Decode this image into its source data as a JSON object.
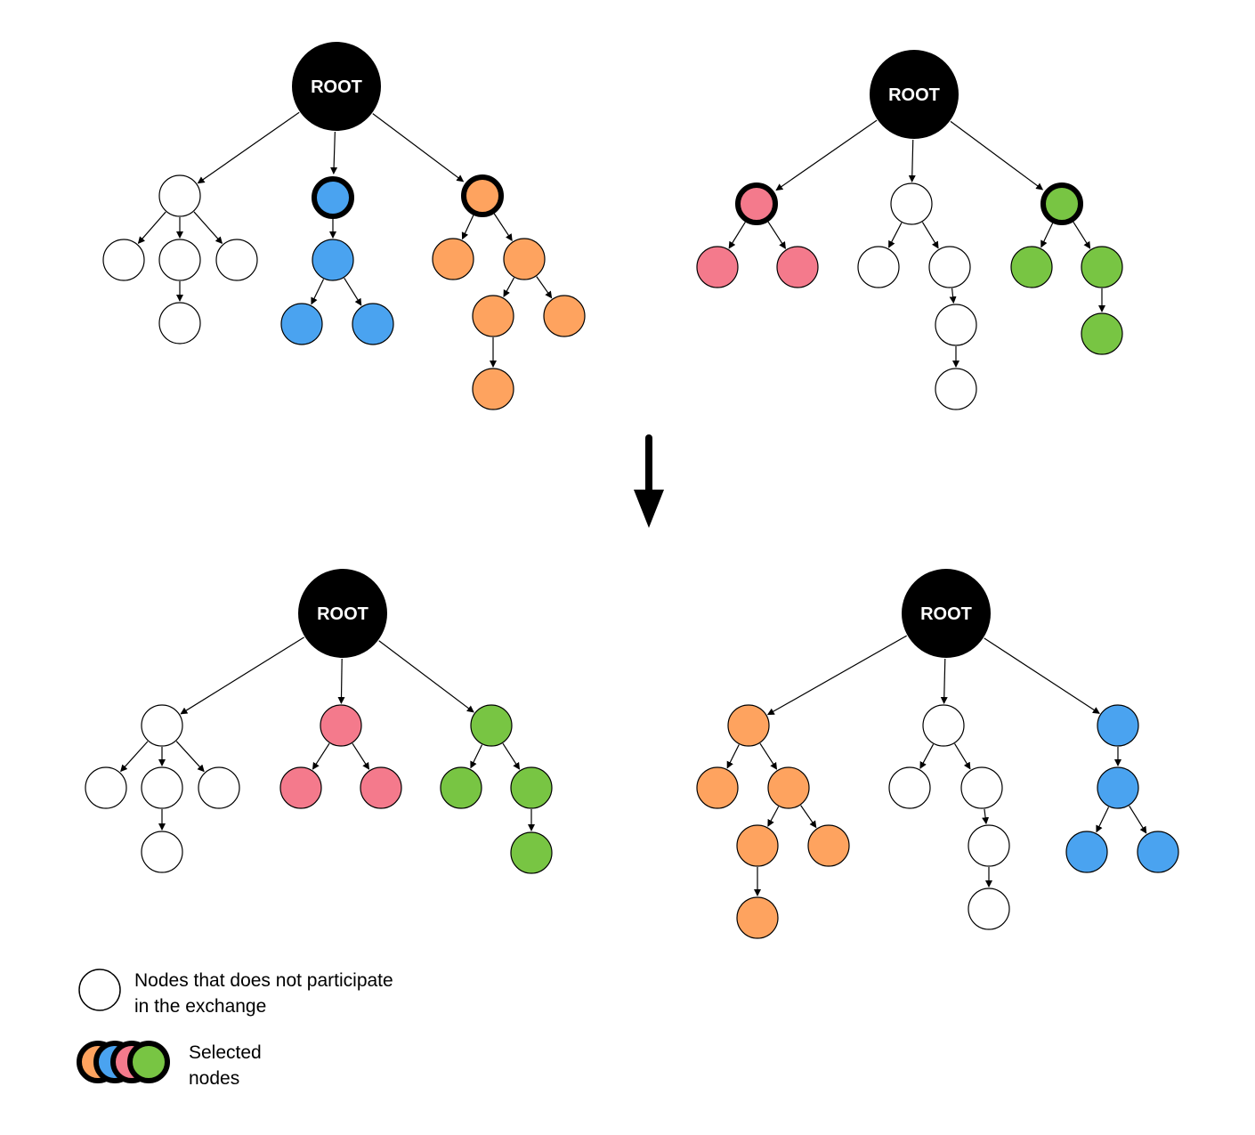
{
  "colors": {
    "white": "#ffffff",
    "blue": "#4aa3f0",
    "orange": "#fea35f",
    "pink": "#f47a8c",
    "green": "#78c543",
    "root": "#000000"
  },
  "root_label": "ROOT",
  "trees": [
    {
      "name": "before-left",
      "nodes": [
        {
          "id": "r",
          "color": "root",
          "root": true
        },
        {
          "id": "a",
          "color": "white"
        },
        {
          "id": "a1",
          "color": "white"
        },
        {
          "id": "a2",
          "color": "white"
        },
        {
          "id": "a3",
          "color": "white"
        },
        {
          "id": "a21",
          "color": "white"
        },
        {
          "id": "b",
          "color": "blue",
          "selected": true
        },
        {
          "id": "b1",
          "color": "blue"
        },
        {
          "id": "b11",
          "color": "blue"
        },
        {
          "id": "b12",
          "color": "blue"
        },
        {
          "id": "c",
          "color": "orange",
          "selected": true
        },
        {
          "id": "c1",
          "color": "orange"
        },
        {
          "id": "c2",
          "color": "orange"
        },
        {
          "id": "c21",
          "color": "orange"
        },
        {
          "id": "c22",
          "color": "orange"
        },
        {
          "id": "c211",
          "color": "orange"
        }
      ],
      "edges": [
        [
          "r",
          "a"
        ],
        [
          "r",
          "b"
        ],
        [
          "r",
          "c"
        ],
        [
          "a",
          "a1"
        ],
        [
          "a",
          "a2"
        ],
        [
          "a",
          "a3"
        ],
        [
          "a2",
          "a21"
        ],
        [
          "b",
          "b1"
        ],
        [
          "b1",
          "b11"
        ],
        [
          "b1",
          "b12"
        ],
        [
          "c",
          "c1"
        ],
        [
          "c",
          "c2"
        ],
        [
          "c2",
          "c21"
        ],
        [
          "c2",
          "c22"
        ],
        [
          "c21",
          "c211"
        ]
      ]
    },
    {
      "name": "before-right",
      "nodes": [
        {
          "id": "r",
          "color": "root",
          "root": true
        },
        {
          "id": "p",
          "color": "pink",
          "selected": true
        },
        {
          "id": "p1",
          "color": "pink"
        },
        {
          "id": "p2",
          "color": "pink"
        },
        {
          "id": "w",
          "color": "white"
        },
        {
          "id": "w1",
          "color": "white"
        },
        {
          "id": "w2",
          "color": "white"
        },
        {
          "id": "w21",
          "color": "white"
        },
        {
          "id": "w211",
          "color": "white"
        },
        {
          "id": "g",
          "color": "green",
          "selected": true
        },
        {
          "id": "g1",
          "color": "green"
        },
        {
          "id": "g2",
          "color": "green"
        },
        {
          "id": "g21",
          "color": "green"
        }
      ],
      "edges": [
        [
          "r",
          "p"
        ],
        [
          "r",
          "w"
        ],
        [
          "r",
          "g"
        ],
        [
          "p",
          "p1"
        ],
        [
          "p",
          "p2"
        ],
        [
          "w",
          "w1"
        ],
        [
          "w",
          "w2"
        ],
        [
          "w2",
          "w21"
        ],
        [
          "w21",
          "w211"
        ],
        [
          "g",
          "g1"
        ],
        [
          "g",
          "g2"
        ],
        [
          "g2",
          "g21"
        ]
      ]
    },
    {
      "name": "after-left",
      "nodes": [
        {
          "id": "r",
          "color": "root",
          "root": true
        },
        {
          "id": "a",
          "color": "white"
        },
        {
          "id": "a1",
          "color": "white"
        },
        {
          "id": "a2",
          "color": "white"
        },
        {
          "id": "a3",
          "color": "white"
        },
        {
          "id": "a21",
          "color": "white"
        },
        {
          "id": "p",
          "color": "pink"
        },
        {
          "id": "p1",
          "color": "pink"
        },
        {
          "id": "p2",
          "color": "pink"
        },
        {
          "id": "g",
          "color": "green"
        },
        {
          "id": "g1",
          "color": "green"
        },
        {
          "id": "g2",
          "color": "green"
        },
        {
          "id": "g21",
          "color": "green"
        }
      ],
      "edges": [
        [
          "r",
          "a"
        ],
        [
          "r",
          "p"
        ],
        [
          "r",
          "g"
        ],
        [
          "a",
          "a1"
        ],
        [
          "a",
          "a2"
        ],
        [
          "a",
          "a3"
        ],
        [
          "a2",
          "a21"
        ],
        [
          "p",
          "p1"
        ],
        [
          "p",
          "p2"
        ],
        [
          "g",
          "g1"
        ],
        [
          "g",
          "g2"
        ],
        [
          "g2",
          "g21"
        ]
      ]
    },
    {
      "name": "after-right",
      "nodes": [
        {
          "id": "r",
          "color": "root",
          "root": true
        },
        {
          "id": "c",
          "color": "orange"
        },
        {
          "id": "c1",
          "color": "orange"
        },
        {
          "id": "c2",
          "color": "orange"
        },
        {
          "id": "c21",
          "color": "orange"
        },
        {
          "id": "c22",
          "color": "orange"
        },
        {
          "id": "c211",
          "color": "orange"
        },
        {
          "id": "w",
          "color": "white"
        },
        {
          "id": "w1",
          "color": "white"
        },
        {
          "id": "w2",
          "color": "white"
        },
        {
          "id": "w21",
          "color": "white"
        },
        {
          "id": "w211",
          "color": "white"
        },
        {
          "id": "b",
          "color": "blue"
        },
        {
          "id": "b1",
          "color": "blue"
        },
        {
          "id": "b11",
          "color": "blue"
        },
        {
          "id": "b12",
          "color": "blue"
        }
      ],
      "edges": [
        [
          "r",
          "c"
        ],
        [
          "r",
          "w"
        ],
        [
          "r",
          "b"
        ],
        [
          "c",
          "c1"
        ],
        [
          "c",
          "c2"
        ],
        [
          "c2",
          "c21"
        ],
        [
          "c2",
          "c22"
        ],
        [
          "c21",
          "c211"
        ],
        [
          "w",
          "w1"
        ],
        [
          "w",
          "w2"
        ],
        [
          "w2",
          "w21"
        ],
        [
          "w21",
          "w211"
        ],
        [
          "b",
          "b1"
        ],
        [
          "b1",
          "b11"
        ],
        [
          "b1",
          "b12"
        ]
      ]
    }
  ],
  "legend": {
    "plain": {
      "line1": "Nodes that does not participate",
      "line2": "in the exchange"
    },
    "selected": {
      "line1": "Selected",
      "line2": "nodes",
      "swatch_colors": [
        "orange",
        "blue",
        "pink",
        "green"
      ]
    }
  }
}
